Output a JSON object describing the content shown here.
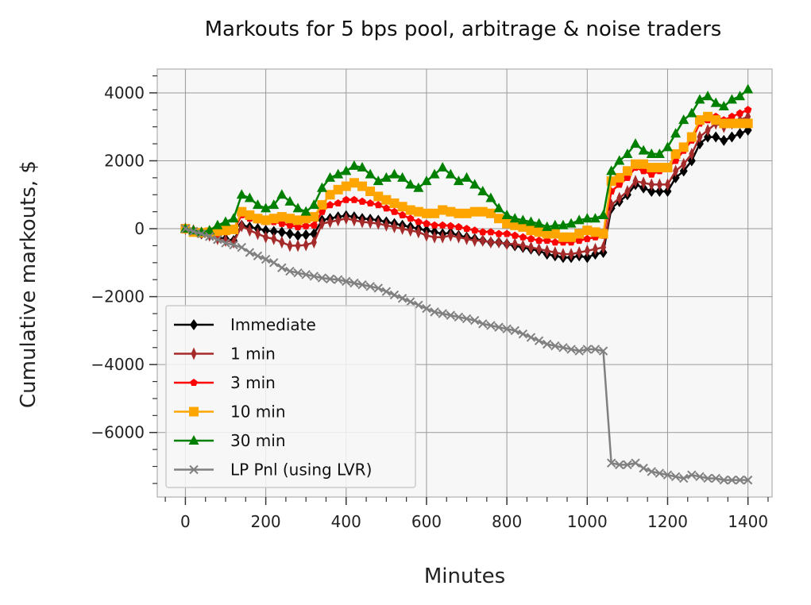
{
  "chart_data": {
    "type": "line",
    "title": "Markouts for 5 bps pool, arbitrage & noise traders",
    "xlabel": "Minutes",
    "ylabel": "Cumulative markouts, $",
    "xlim": [
      -70,
      1460
    ],
    "ylim": [
      -7900,
      4700
    ],
    "xticks": [
      0,
      200,
      400,
      600,
      800,
      1000,
      1200,
      1400
    ],
    "yticks": [
      -6000,
      -4000,
      -2000,
      0,
      2000,
      4000
    ],
    "xtick_labels": [
      "0",
      "200",
      "400",
      "600",
      "800",
      "1000",
      "1200",
      "1400"
    ],
    "ytick_labels": [
      "−6000",
      "−4000",
      "−2000",
      "0",
      "2000",
      "4000"
    ],
    "grid": true,
    "legend_position": "lower-left",
    "x": [
      0,
      20,
      40,
      60,
      80,
      100,
      120,
      140,
      160,
      180,
      200,
      220,
      240,
      260,
      280,
      300,
      320,
      340,
      360,
      380,
      400,
      420,
      440,
      460,
      480,
      500,
      520,
      540,
      560,
      580,
      600,
      620,
      640,
      660,
      680,
      700,
      720,
      740,
      760,
      780,
      800,
      820,
      840,
      860,
      880,
      900,
      920,
      940,
      960,
      980,
      1000,
      1020,
      1040,
      1060,
      1080,
      1100,
      1120,
      1140,
      1160,
      1180,
      1200,
      1220,
      1240,
      1260,
      1280,
      1300,
      1320,
      1340,
      1360,
      1380,
      1400
    ],
    "series": [
      {
        "name": "Immediate",
        "color": "#000000",
        "marker": "diamond",
        "values": [
          0,
          -60,
          -150,
          -180,
          -250,
          -300,
          -350,
          100,
          50,
          0,
          -50,
          -80,
          -100,
          -150,
          -200,
          -180,
          -150,
          250,
          300,
          350,
          380,
          350,
          300,
          280,
          250,
          200,
          150,
          100,
          50,
          0,
          -50,
          -100,
          -150,
          -120,
          -200,
          -250,
          -300,
          -350,
          -400,
          -400,
          -450,
          -500,
          -550,
          -600,
          -650,
          -750,
          -800,
          -850,
          -850,
          -800,
          -850,
          -750,
          -700,
          600,
          800,
          1000,
          1300,
          1200,
          1100,
          1100,
          1100,
          1500,
          1700,
          2000,
          2500,
          2700,
          2700,
          2600,
          2700,
          2800,
          2900
        ]
      },
      {
        "name": "1 min",
        "color": "#a52a2a",
        "marker": "thin-diamond",
        "values": [
          0,
          -50,
          -120,
          -200,
          -300,
          -350,
          -400,
          80,
          -50,
          -150,
          -250,
          -300,
          -400,
          -500,
          -500,
          -480,
          -400,
          150,
          200,
          250,
          300,
          250,
          200,
          180,
          150,
          100,
          50,
          0,
          -50,
          -100,
          -200,
          -250,
          -250,
          -200,
          -250,
          -300,
          -350,
          -350,
          -400,
          -400,
          -450,
          -450,
          -500,
          -550,
          -600,
          -650,
          -700,
          -750,
          -750,
          -700,
          -650,
          -600,
          -550,
          700,
          900,
          1100,
          1400,
          1350,
          1300,
          1300,
          1300,
          1700,
          1900,
          2200,
          2700,
          2900,
          3100,
          3000,
          3100,
          3200,
          3300
        ]
      },
      {
        "name": "3 min",
        "color": "#ff0000",
        "marker": "pentagon",
        "values": [
          0,
          -40,
          -80,
          -120,
          -150,
          -100,
          -50,
          400,
          300,
          250,
          200,
          200,
          150,
          100,
          50,
          80,
          100,
          500,
          700,
          750,
          850,
          850,
          800,
          750,
          700,
          600,
          500,
          400,
          300,
          200,
          150,
          100,
          100,
          80,
          50,
          0,
          -50,
          -100,
          -100,
          -150,
          -150,
          -200,
          -250,
          -300,
          -350,
          -350,
          -400,
          -400,
          -400,
          -350,
          -300,
          -250,
          -200,
          1100,
          1300,
          1500,
          1800,
          1700,
          1600,
          1700,
          1800,
          2000,
          2300,
          2600,
          3100,
          3200,
          3300,
          3200,
          3300,
          3400,
          3500
        ]
      },
      {
        "name": "10 min",
        "color": "#ffa500",
        "marker": "square",
        "values": [
          0,
          -100,
          -120,
          -100,
          -80,
          -50,
          -20,
          500,
          400,
          300,
          250,
          300,
          350,
          300,
          250,
          300,
          350,
          700,
          1000,
          1150,
          1250,
          1350,
          1250,
          1100,
          950,
          850,
          750,
          650,
          550,
          500,
          450,
          450,
          550,
          500,
          450,
          450,
          500,
          500,
          450,
          300,
          150,
          100,
          50,
          -50,
          -100,
          -150,
          -150,
          -250,
          -250,
          -150,
          -50,
          -100,
          -150,
          1400,
          1500,
          1700,
          1900,
          1900,
          1800,
          1800,
          1800,
          2200,
          2400,
          2700,
          3200,
          3300,
          3200,
          3100,
          3100,
          3100,
          3100
        ]
      },
      {
        "name": "30 min",
        "color": "#008000",
        "marker": "triangle",
        "values": [
          0,
          -50,
          -100,
          -50,
          100,
          200,
          300,
          1000,
          900,
          700,
          600,
          700,
          1000,
          800,
          600,
          500,
          700,
          1200,
          1500,
          1600,
          1700,
          1850,
          1800,
          1600,
          1400,
          1500,
          1600,
          1500,
          1300,
          1200,
          1400,
          1600,
          1800,
          1600,
          1400,
          1500,
          1300,
          1100,
          900,
          600,
          400,
          300,
          250,
          200,
          150,
          50,
          100,
          100,
          150,
          250,
          300,
          300,
          400,
          1700,
          2000,
          2200,
          2500,
          2300,
          2200,
          2200,
          2400,
          2800,
          3200,
          3400,
          3800,
          3900,
          3700,
          3600,
          3800,
          3900,
          4100
        ]
      },
      {
        "name": "LP Pnl (using LVR)",
        "color": "#808080",
        "marker": "x",
        "values": [
          0,
          -80,
          -150,
          -230,
          -320,
          -420,
          -480,
          -550,
          -700,
          -800,
          -900,
          -1000,
          -1150,
          -1250,
          -1300,
          -1350,
          -1400,
          -1450,
          -1480,
          -1500,
          -1550,
          -1600,
          -1650,
          -1700,
          -1750,
          -1850,
          -1950,
          -2050,
          -2150,
          -2250,
          -2350,
          -2450,
          -2500,
          -2550,
          -2600,
          -2650,
          -2700,
          -2800,
          -2850,
          -2900,
          -2950,
          -3000,
          -3100,
          -3200,
          -3300,
          -3400,
          -3450,
          -3500,
          -3550,
          -3600,
          -3550,
          -3550,
          -3600,
          -6900,
          -6950,
          -6950,
          -6900,
          -7050,
          -7150,
          -7200,
          -7250,
          -7300,
          -7350,
          -7250,
          -7300,
          -7350,
          -7350,
          -7400,
          -7400,
          -7400,
          -7400
        ]
      }
    ]
  }
}
